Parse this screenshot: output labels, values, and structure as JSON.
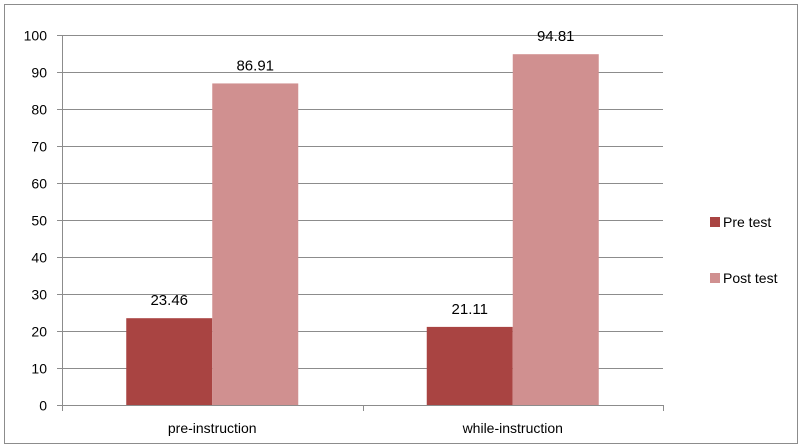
{
  "chart_data": {
    "type": "bar",
    "categories": [
      "pre-instruction",
      "while-instruction"
    ],
    "series": [
      {
        "name": "Pre test",
        "values": [
          23.46,
          21.11
        ],
        "color": "#a94442"
      },
      {
        "name": "Post test",
        "values": [
          86.91,
          94.81
        ],
        "color": "#d09090"
      }
    ],
    "data_labels": [
      "23.46",
      "86.91",
      "21.11",
      "94.81"
    ],
    "ylim": [
      0,
      100
    ],
    "yticks": [
      0,
      10,
      20,
      30,
      40,
      50,
      60,
      70,
      80,
      90,
      100
    ],
    "grid": true,
    "legend": "right",
    "title": "",
    "xlabel": "",
    "ylabel": ""
  },
  "colors": {
    "gridline": "#8c8c8c",
    "axis": "#8c8c8c"
  }
}
